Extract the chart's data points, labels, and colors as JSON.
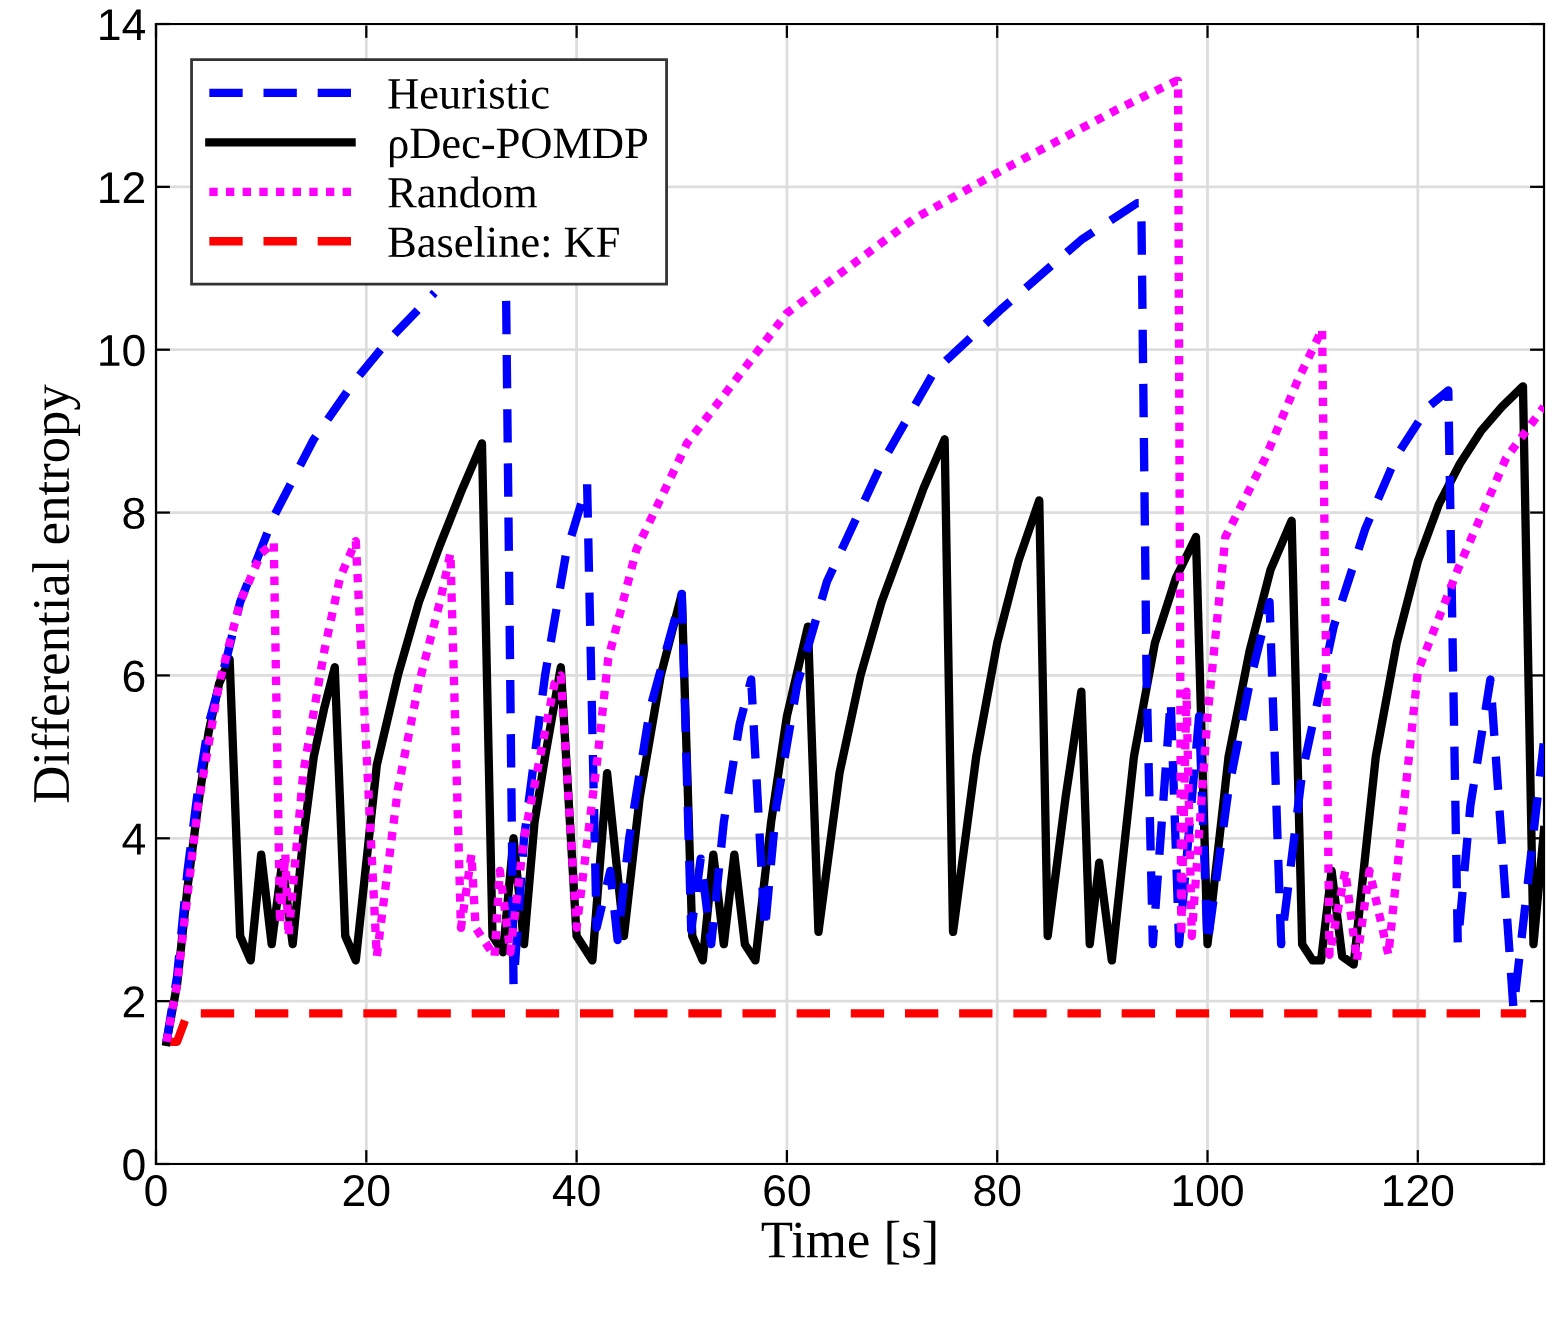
{
  "chart_data": {
    "type": "line",
    "xlabel": "Time [s]",
    "ylabel": "Differential entropy",
    "xlim": [
      0,
      132
    ],
    "ylim": [
      0,
      14
    ],
    "xticks": [
      0,
      20,
      40,
      60,
      80,
      100,
      120
    ],
    "yticks": [
      0,
      2,
      4,
      6,
      8,
      10,
      12,
      14
    ],
    "grid": true,
    "legend": "top left",
    "marker": "none",
    "series": [
      {
        "name": "Heuristic",
        "color": "#0000ff",
        "line_style": "dashed",
        "x": [
          1,
          2,
          3,
          4,
          5,
          6.7,
          8,
          11.2,
          15,
          18.8,
          22,
          26.5,
          30,
          33.3,
          34,
          35,
          37,
          39,
          41,
          41.9,
          43.2,
          43.9,
          45,
          47,
          50,
          50.9,
          51.8,
          52.8,
          54,
          55.5,
          56.6,
          57.9,
          59,
          61,
          63.8,
          69,
          74,
          80.4,
          88,
          93.3,
          93.7,
          94.2,
          94.8,
          96.5,
          97.3,
          99.2,
          100,
          102,
          104,
          105.9,
          107,
          109,
          112,
          115,
          118,
          121,
          122.9,
          123.8,
          125,
          126.9,
          129.1,
          132
        ],
        "values": [
          1.5,
          2.3,
          3.6,
          4.6,
          5.4,
          6.2,
          6.9,
          7.95,
          8.9,
          9.6,
          10.1,
          10.7,
          null,
          10.6,
          2.2,
          4.0,
          6.0,
          7.5,
          8.35,
          2.9,
          3.6,
          2.75,
          4.0,
          5.6,
          7.0,
          2.87,
          3.75,
          2.7,
          4.2,
          5.4,
          5.95,
          2.87,
          4.4,
          5.9,
          7.15,
          8.6,
          9.73,
          10.5,
          11.35,
          11.8,
          11.8,
          6.0,
          2.7,
          5.7,
          2.7,
          5.5,
          2.7,
          4.6,
          5.9,
          6.9,
          2.7,
          4.8,
          6.6,
          7.8,
          8.7,
          9.3,
          9.5,
          2.7,
          4.4,
          5.95,
          1.9,
          5.2
        ]
      },
      {
        "name": "ρDec-POMDP",
        "color": "#000000",
        "line_style": "solid",
        "x": [
          1,
          2,
          3,
          4,
          5,
          6,
          7,
          8,
          9,
          10,
          11,
          12,
          13,
          14,
          15,
          16,
          17,
          18,
          19,
          21,
          23,
          25,
          27,
          29,
          31,
          32,
          33,
          34,
          35,
          36,
          37,
          38.5,
          40,
          41.5,
          42.9,
          44.5,
          46,
          48,
          50,
          51,
          52,
          53,
          54,
          55,
          56,
          57,
          58.5,
          60,
          62,
          63,
          65,
          67,
          69,
          71,
          73,
          75,
          75.8,
          78,
          80,
          82,
          84,
          84.8,
          86.5,
          88,
          88.8,
          89.7,
          90.9,
          93,
          95,
          97,
          98.9,
          100,
          102,
          104,
          106,
          108,
          109,
          110,
          110.8,
          111.8,
          112.8,
          113.9,
          116,
          118,
          120,
          122,
          124,
          126,
          128,
          130,
          131,
          132
        ],
        "values": [
          1.5,
          2.2,
          3.4,
          4.4,
          5.3,
          5.9,
          6.2,
          2.8,
          2.5,
          3.8,
          2.7,
          3.7,
          2.7,
          4.0,
          5.0,
          5.6,
          6.1,
          2.8,
          2.5,
          4.9,
          6.0,
          6.9,
          7.6,
          8.25,
          8.85,
          2.8,
          2.6,
          4.0,
          2.7,
          4.2,
          5.0,
          6.1,
          2.8,
          2.5,
          4.8,
          2.8,
          4.5,
          6.0,
          7.0,
          2.8,
          2.5,
          3.8,
          2.7,
          3.8,
          2.7,
          2.5,
          4.2,
          5.5,
          6.6,
          2.85,
          4.8,
          6.0,
          6.9,
          7.6,
          8.3,
          8.9,
          2.85,
          5.0,
          6.4,
          7.4,
          8.15,
          2.8,
          4.5,
          5.8,
          2.7,
          3.7,
          2.5,
          5.0,
          6.4,
          7.2,
          7.7,
          2.7,
          5.0,
          6.3,
          7.3,
          7.9,
          2.7,
          2.5,
          2.5,
          3.6,
          2.55,
          2.45,
          5.0,
          6.4,
          7.4,
          8.1,
          8.6,
          9.0,
          9.3,
          9.55,
          2.7,
          4.1
        ]
      },
      {
        "name": "Random",
        "color": "#ff00ff",
        "line_style": "dotted",
        "x": [
          1,
          2,
          3,
          4,
          6,
          8,
          10,
          11.2,
          11.8,
          12.3,
          12.6,
          14,
          16,
          17.5,
          19,
          21,
          23,
          25,
          27,
          28,
          29,
          30,
          30.4,
          32.2,
          32.7,
          33.7,
          35,
          37.9,
          38.5,
          40,
          42,
          43,
          45.7,
          50.5,
          60,
          72,
          80.4,
          91.4,
          97,
          97.2,
          97.5,
          98,
          98.5,
          100,
          101.7,
          105.5,
          108.6,
          110.9,
          111.6,
          113.1,
          114.2,
          115.4,
          117.2,
          120,
          123.8,
          128.4,
          132
        ],
        "values": [
          1.5,
          2.2,
          3.3,
          4.4,
          5.9,
          6.9,
          7.5,
          7.63,
          2.95,
          3.8,
          2.8,
          4.8,
          6.3,
          7.2,
          7.65,
          2.55,
          4.6,
          5.9,
          6.9,
          7.5,
          2.9,
          3.8,
          2.9,
          2.55,
          3.6,
          2.6,
          4.0,
          5.9,
          6.0,
          2.9,
          5.0,
          6.2,
          7.55,
          8.85,
          10.45,
          11.6,
          12.2,
          12.95,
          13.3,
          13.3,
          2.8,
          5.8,
          2.8,
          5.5,
          7.7,
          8.67,
          9.63,
          10.25,
          2.57,
          3.6,
          2.5,
          3.6,
          2.57,
          6.05,
          7.3,
          8.67,
          9.3
        ]
      },
      {
        "name": "Baseline: KF",
        "color": "#ff0000",
        "line_style": "dashed",
        "x": [
          1,
          2,
          3,
          130.3
        ],
        "values": [
          1.5,
          1.5,
          1.85,
          1.85
        ]
      }
    ]
  }
}
